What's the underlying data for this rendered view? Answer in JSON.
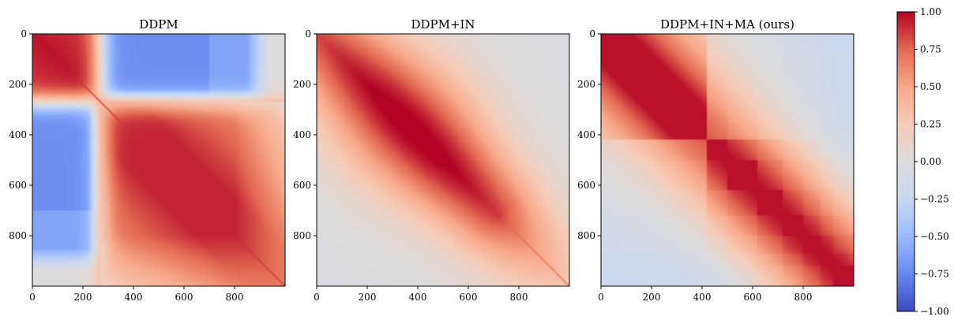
{
  "chart_data": [
    {
      "type": "heatmap",
      "title": "DDPM",
      "variant": "ddpm",
      "size": 1000,
      "x_ticks": [
        "0",
        "200",
        "400",
        "600",
        "800"
      ],
      "y_ticks": [
        "0",
        "200",
        "400",
        "600",
        "800"
      ],
      "x_tick_values": [
        0,
        200,
        400,
        600,
        800
      ],
      "y_tick_values": [
        0,
        200,
        400,
        600,
        800
      ],
      "xlim": [
        0,
        1000
      ],
      "ylim": [
        1000,
        0
      ],
      "description_blocks": {
        "cluster_boundary": 270,
        "anticorrelation": -0.7
      }
    },
    {
      "type": "heatmap",
      "title": "DDPM+IN",
      "variant": "ddpm_in",
      "size": 1000,
      "x_ticks": [
        "0",
        "200",
        "400",
        "600",
        "800"
      ],
      "y_ticks": [
        "0",
        "200",
        "400",
        "600",
        "800"
      ],
      "x_tick_values": [
        0,
        200,
        400,
        600,
        800
      ],
      "y_tick_values": [
        0,
        200,
        400,
        600,
        800
      ],
      "xlim": [
        0,
        1000
      ],
      "ylim": [
        1000,
        0
      ]
    },
    {
      "type": "heatmap",
      "title": "DDPM+IN+MA (ours)",
      "variant": "ddpm_in_ma",
      "size": 1000,
      "x_ticks": [
        "0",
        "200",
        "400",
        "600",
        "800"
      ],
      "y_ticks": [
        "0",
        "200",
        "400",
        "600",
        "800"
      ],
      "x_tick_values": [
        0,
        200,
        400,
        600,
        800
      ],
      "y_tick_values": [
        0,
        200,
        400,
        600,
        800
      ],
      "xlim": [
        0,
        1000
      ],
      "ylim": [
        1000,
        0
      ],
      "block_edges": [
        0,
        420,
        500,
        620,
        720,
        800,
        870,
        920,
        1000
      ]
    }
  ],
  "colorbar": {
    "colormap": "coolwarm",
    "min": -1.0,
    "max": 1.0,
    "tick_values": [
      1.0,
      0.75,
      0.5,
      0.25,
      0.0,
      -0.25,
      -0.5,
      -0.75,
      -1.0
    ],
    "tick_labels": [
      "1.00",
      "0.75",
      "0.50",
      "0.25",
      "0.00",
      "−0.25",
      "−0.50",
      "−0.75",
      "−1.00"
    ],
    "color_stops": [
      "#3b4cc0",
      "#6788ee",
      "#9abbff",
      "#c9d7f0",
      "#dddcdc",
      "#f6cbb7",
      "#f7a889",
      "#e26952",
      "#b40426"
    ]
  }
}
